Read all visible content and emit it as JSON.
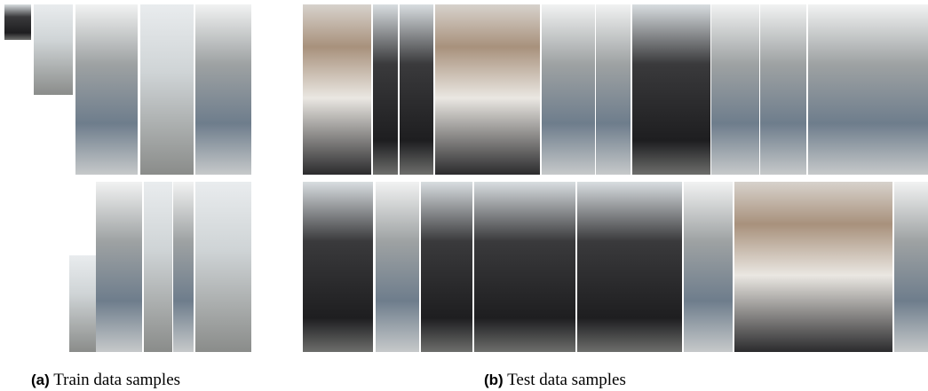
{
  "captions": [
    {
      "label": "(a)",
      "text": "Train data samples"
    },
    {
      "label": "(b)",
      "text": "Test data samples"
    }
  ]
}
